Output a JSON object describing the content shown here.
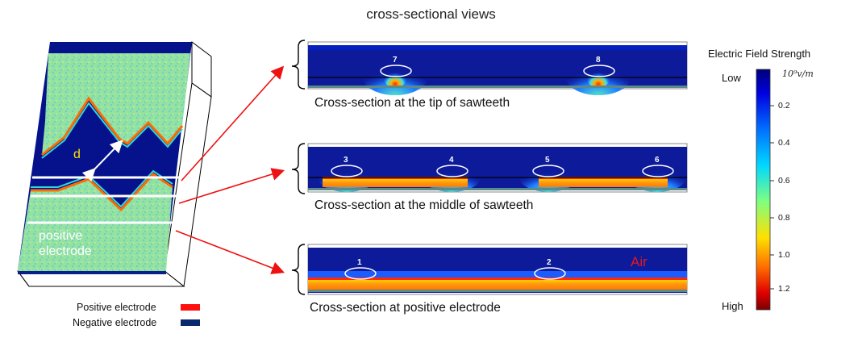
{
  "title": "cross-sectional views",
  "block": {
    "d_label": "d",
    "positive_label_line1": "positive",
    "positive_label_line2": "electrode"
  },
  "sections": [
    {
      "caption": "Cross-section at the tip of sawteeth",
      "markers": [
        "7",
        "8"
      ]
    },
    {
      "caption": "Cross-section at the middle of sawteeth",
      "markers": [
        "3",
        "4",
        "5",
        "6"
      ]
    },
    {
      "caption": "Cross-section at positive electrode",
      "markers": [
        "1",
        "2"
      ],
      "region_label": "Air"
    }
  ],
  "colorbar": {
    "title": "Electric Field Strength",
    "unit": "10⁹v/m",
    "low_label": "Low",
    "high_label": "High",
    "ticks": [
      "0.2",
      "0.4",
      "0.6",
      "0.8",
      "1.0",
      "1.2"
    ]
  },
  "legend": {
    "positive": {
      "label": "Positive electrode",
      "color": "#ff1010"
    },
    "negative": {
      "label": "Negative electrode",
      "color": "#0a2a6e"
    }
  },
  "colors": {
    "field_low": "#00008a",
    "field_mid": "#33c3c8",
    "field_high": "#ff2a00",
    "arrow": "#ee1111"
  }
}
